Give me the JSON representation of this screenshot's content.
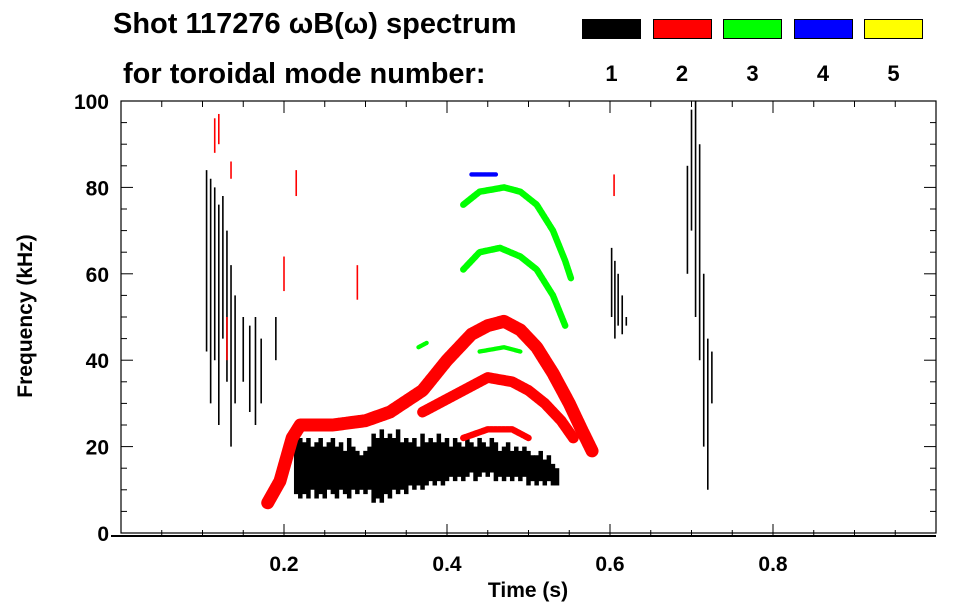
{
  "title_line1": "Shot 117276 ωB(ω) spectrum",
  "title_line2": "for toroidal mode number:",
  "legend": [
    {
      "label": "1",
      "color": "#000000"
    },
    {
      "label": "2",
      "color": "#ff0000"
    },
    {
      "label": "3",
      "color": "#00ff00"
    },
    {
      "label": "4",
      "color": "#0000ff"
    },
    {
      "label": "5",
      "color": "#ffff00"
    }
  ],
  "chart_data": {
    "type": "heatmap",
    "title": "Shot 117276 ωB(ω) spectrum for toroidal mode number",
    "xlabel": "Time (s)",
    "ylabel": "Frequency (kHz)",
    "xlim": [
      0,
      1.0
    ],
    "ylim": [
      0,
      100
    ],
    "xticks": [
      0.2,
      0.4,
      0.6,
      0.8
    ],
    "xtick_labels": [
      "0.2",
      "0.4",
      "0.6",
      "0.8"
    ],
    "yticks": [
      0,
      20,
      40,
      60,
      80,
      100
    ],
    "ytick_labels": [
      "0",
      "20",
      "40",
      "60",
      "80",
      "100"
    ],
    "tracks": [
      {
        "mode": 2,
        "color": "#ff0000",
        "width_khz": 3,
        "points": [
          [
            0.18,
            7
          ],
          [
            0.195,
            12
          ],
          [
            0.21,
            22
          ],
          [
            0.22,
            25
          ],
          [
            0.26,
            25
          ],
          [
            0.3,
            26
          ],
          [
            0.33,
            28
          ],
          [
            0.37,
            33
          ],
          [
            0.4,
            40
          ],
          [
            0.43,
            46
          ],
          [
            0.45,
            48
          ],
          [
            0.47,
            49
          ],
          [
            0.49,
            47
          ],
          [
            0.51,
            43
          ],
          [
            0.53,
            37
          ],
          [
            0.55,
            30
          ],
          [
            0.565,
            24
          ],
          [
            0.578,
            19
          ]
        ]
      },
      {
        "mode": 2,
        "color": "#ff0000",
        "width_khz": 2.5,
        "points": [
          [
            0.37,
            28
          ],
          [
            0.4,
            31
          ],
          [
            0.43,
            34
          ],
          [
            0.45,
            36
          ],
          [
            0.48,
            35
          ],
          [
            0.5,
            33
          ],
          [
            0.52,
            30
          ],
          [
            0.54,
            26
          ],
          [
            0.555,
            22
          ]
        ]
      },
      {
        "mode": 2,
        "color": "#ff0000",
        "width_khz": 1.5,
        "points": [
          [
            0.42,
            22
          ],
          [
            0.45,
            24
          ],
          [
            0.48,
            24
          ],
          [
            0.5,
            22
          ]
        ]
      },
      {
        "mode": 3,
        "color": "#00ff00",
        "width_khz": 1.5,
        "points": [
          [
            0.42,
            76
          ],
          [
            0.44,
            79
          ],
          [
            0.47,
            80
          ],
          [
            0.49,
            79
          ],
          [
            0.51,
            76
          ],
          [
            0.53,
            70
          ],
          [
            0.545,
            63
          ],
          [
            0.552,
            59
          ]
        ]
      },
      {
        "mode": 3,
        "color": "#00ff00",
        "width_khz": 1.5,
        "points": [
          [
            0.42,
            61
          ],
          [
            0.44,
            65
          ],
          [
            0.465,
            66
          ],
          [
            0.49,
            64
          ],
          [
            0.51,
            61
          ],
          [
            0.53,
            55
          ],
          [
            0.545,
            48
          ]
        ]
      },
      {
        "mode": 3,
        "color": "#00ff00",
        "width_khz": 1,
        "points": [
          [
            0.44,
            42
          ],
          [
            0.47,
            43
          ],
          [
            0.49,
            42
          ]
        ]
      },
      {
        "mode": 3,
        "color": "#00ff00",
        "width_khz": 1,
        "points": [
          [
            0.365,
            43
          ],
          [
            0.375,
            44
          ]
        ]
      },
      {
        "mode": 4,
        "color": "#0000ff",
        "width_khz": 1,
        "points": [
          [
            0.43,
            83
          ],
          [
            0.46,
            83
          ]
        ]
      }
    ],
    "bursts": [
      {
        "mode": 1,
        "color": "#000000",
        "segments": [
          [
            0.105,
            42,
            84
          ],
          [
            0.11,
            30,
            82
          ],
          [
            0.115,
            40,
            80
          ],
          [
            0.12,
            25,
            76
          ],
          [
            0.125,
            45,
            78
          ],
          [
            0.13,
            35,
            70
          ],
          [
            0.135,
            20,
            62
          ],
          [
            0.14,
            30,
            55
          ],
          [
            0.15,
            35,
            50
          ],
          [
            0.158,
            28,
            48
          ],
          [
            0.165,
            25,
            50
          ],
          [
            0.172,
            30,
            45
          ],
          [
            0.19,
            40,
            50
          ],
          [
            0.215,
            9,
            23
          ],
          [
            0.22,
            8,
            22
          ],
          [
            0.225,
            9,
            21
          ],
          [
            0.23,
            8,
            22
          ],
          [
            0.235,
            10,
            20
          ],
          [
            0.24,
            8,
            21
          ],
          [
            0.245,
            9,
            22
          ],
          [
            0.25,
            8,
            20
          ],
          [
            0.255,
            10,
            21
          ],
          [
            0.26,
            9,
            22
          ],
          [
            0.265,
            8,
            20
          ],
          [
            0.27,
            10,
            21
          ],
          [
            0.275,
            9,
            19
          ],
          [
            0.28,
            8,
            22
          ],
          [
            0.285,
            10,
            20
          ],
          [
            0.29,
            9,
            19
          ],
          [
            0.295,
            10,
            18
          ],
          [
            0.3,
            9,
            19
          ],
          [
            0.305,
            10,
            20
          ],
          [
            0.31,
            7,
            23
          ],
          [
            0.315,
            8,
            22
          ],
          [
            0.32,
            7,
            24
          ],
          [
            0.325,
            9,
            22
          ],
          [
            0.33,
            8,
            23
          ],
          [
            0.335,
            10,
            22
          ],
          [
            0.34,
            9,
            24
          ],
          [
            0.345,
            10,
            21
          ],
          [
            0.35,
            9,
            22
          ],
          [
            0.355,
            11,
            21
          ],
          [
            0.36,
            10,
            22
          ],
          [
            0.365,
            11,
            20
          ],
          [
            0.37,
            10,
            23
          ],
          [
            0.375,
            11,
            21
          ],
          [
            0.38,
            12,
            22
          ],
          [
            0.385,
            11,
            21
          ],
          [
            0.39,
            12,
            23
          ],
          [
            0.395,
            11,
            21
          ],
          [
            0.4,
            12,
            22
          ],
          [
            0.405,
            13,
            20
          ],
          [
            0.41,
            12,
            22
          ],
          [
            0.415,
            13,
            21
          ],
          [
            0.42,
            12,
            20
          ],
          [
            0.425,
            13,
            22
          ],
          [
            0.43,
            14,
            21
          ],
          [
            0.435,
            12,
            20
          ],
          [
            0.44,
            13,
            22
          ],
          [
            0.445,
            14,
            21
          ],
          [
            0.45,
            13,
            20
          ],
          [
            0.455,
            14,
            22
          ],
          [
            0.46,
            12,
            21
          ],
          [
            0.465,
            13,
            19
          ],
          [
            0.47,
            12,
            20
          ],
          [
            0.475,
            13,
            21
          ],
          [
            0.48,
            12,
            19
          ],
          [
            0.485,
            13,
            20
          ],
          [
            0.49,
            12,
            19
          ],
          [
            0.495,
            13,
            20
          ],
          [
            0.5,
            11,
            19
          ],
          [
            0.505,
            12,
            18
          ],
          [
            0.51,
            11,
            18
          ],
          [
            0.515,
            12,
            19
          ],
          [
            0.52,
            11,
            17
          ],
          [
            0.525,
            12,
            18
          ],
          [
            0.53,
            11,
            16
          ],
          [
            0.535,
            11,
            15
          ],
          [
            0.602,
            50,
            66
          ],
          [
            0.606,
            45,
            63
          ],
          [
            0.61,
            48,
            60
          ],
          [
            0.615,
            46,
            55
          ],
          [
            0.62,
            48,
            50
          ],
          [
            0.695,
            60,
            85
          ],
          [
            0.7,
            70,
            98
          ],
          [
            0.705,
            50,
            100
          ],
          [
            0.71,
            40,
            90
          ],
          [
            0.715,
            20,
            60
          ],
          [
            0.72,
            10,
            45
          ],
          [
            0.725,
            30,
            42
          ]
        ]
      },
      {
        "mode": 2,
        "color": "#ff0000",
        "segments": [
          [
            0.115,
            88,
            96
          ],
          [
            0.12,
            90,
            97
          ],
          [
            0.135,
            82,
            86
          ],
          [
            0.13,
            40,
            50
          ],
          [
            0.2,
            56,
            64
          ],
          [
            0.215,
            78,
            84
          ],
          [
            0.29,
            54,
            62
          ],
          [
            0.605,
            78,
            83
          ]
        ]
      }
    ]
  }
}
